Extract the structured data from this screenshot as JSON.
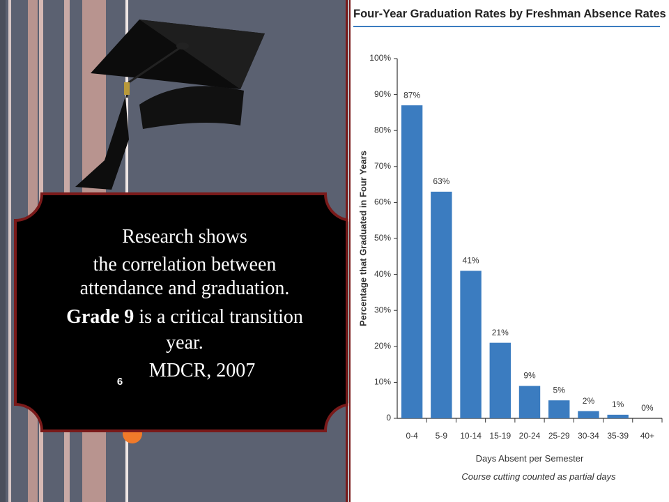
{
  "slide": {
    "lines": [
      "Research shows",
      "the correlation between",
      "attendance and graduation."
    ],
    "emphasis": "Grade 9",
    "emphasis_rest": "is a critical transition",
    "last_line": "year.",
    "citation": "MDCR, 2007",
    "slide_number": "6"
  },
  "chart_data": {
    "type": "bar",
    "title": "Four-Year Graduation Rates by Freshman Absence Rates",
    "x_label": "Days Absent per Semester",
    "note": "Course cutting counted as partial days",
    "y_label": "Percentage that Graduated in Four Years",
    "categories": [
      "0-4",
      "5-9",
      "10-14",
      "15-19",
      "20-24",
      "25-29",
      "30-34",
      "35-39",
      "40+"
    ],
    "values": [
      87,
      63,
      41,
      21,
      9,
      5,
      2,
      1,
      0
    ],
    "value_labels": [
      "87%",
      "63%",
      "41%",
      "21%",
      "9%",
      "5%",
      "2%",
      "1%",
      "0%"
    ],
    "color": "#3b7cc0",
    "ylim": [
      0,
      100
    ],
    "yticks": [
      0,
      {
        "value": 10,
        "label": "10%"
      },
      {
        "value": 20,
        "label": "20%"
      },
      {
        "value": 30,
        "label": "30%"
      },
      {
        "value": 40,
        "label": "40%"
      },
      {
        "value": 50,
        "label": "50%"
      },
      {
        "value": 60,
        "label": "60%"
      },
      {
        "value": 70,
        "label": "70%"
      },
      {
        "value": 80,
        "label": "80%"
      },
      {
        "value": 90,
        "label": "90%"
      },
      {
        "value": 100,
        "label": "100%"
      }
    ],
    "grid": false
  }
}
